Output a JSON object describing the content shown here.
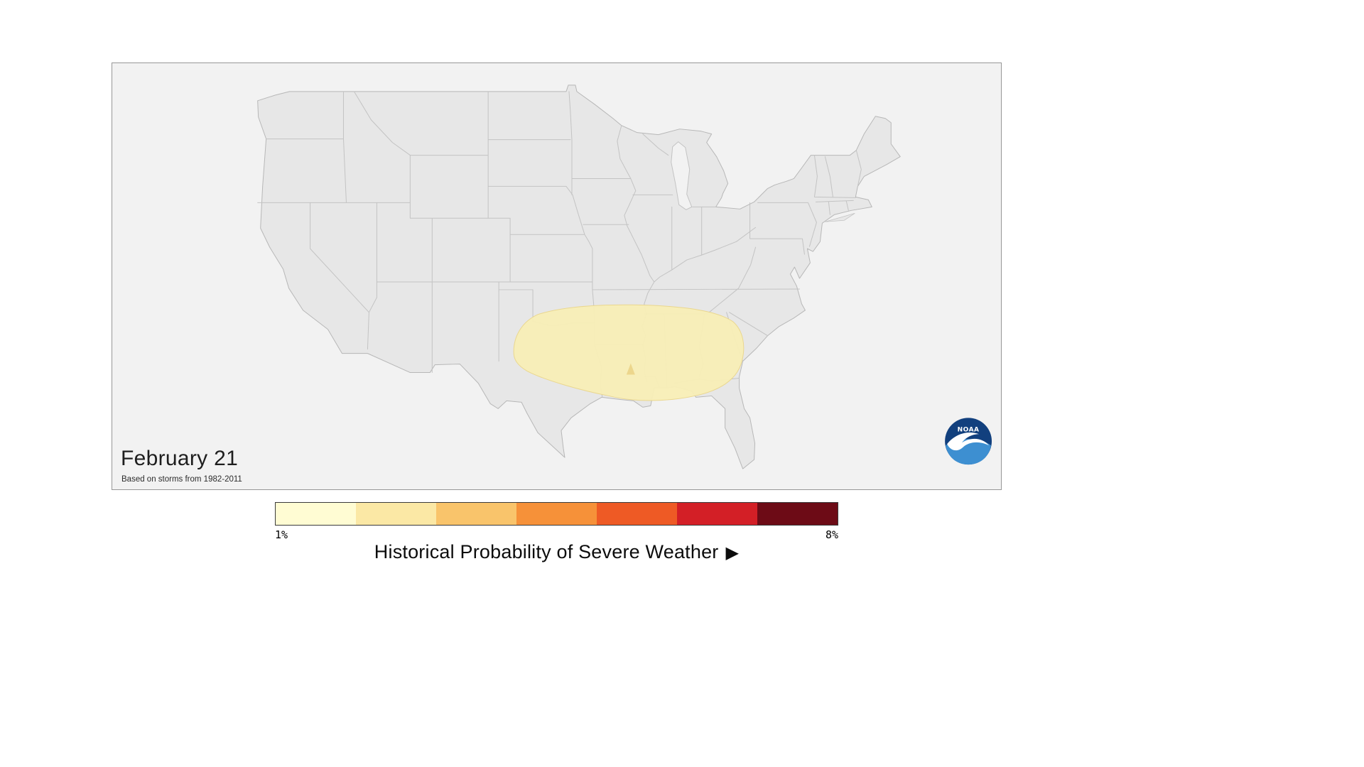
{
  "panel": {
    "date_label": "February 21",
    "subtitle": "Based on storms from 1982-2011"
  },
  "logo": {
    "text": "NOAA"
  },
  "legend": {
    "title": "Historical Probability of Severe Weather",
    "arrow": "▶",
    "min_label": "1%",
    "max_label": "8%",
    "colors": [
      "#fffcd3",
      "#fbe8a5",
      "#f9c46b",
      "#f69139",
      "#ee5a25",
      "#d31f26",
      "#6d0b16"
    ]
  },
  "map": {
    "land_color": "#e7e7e7",
    "state_border_color": "#c3c3c3",
    "background_color": "#f2f2f2",
    "probability_shading": {
      "fill": "#f8eeb6",
      "edge": "#ead78f",
      "accent_fill": "#ecd68c"
    }
  }
}
